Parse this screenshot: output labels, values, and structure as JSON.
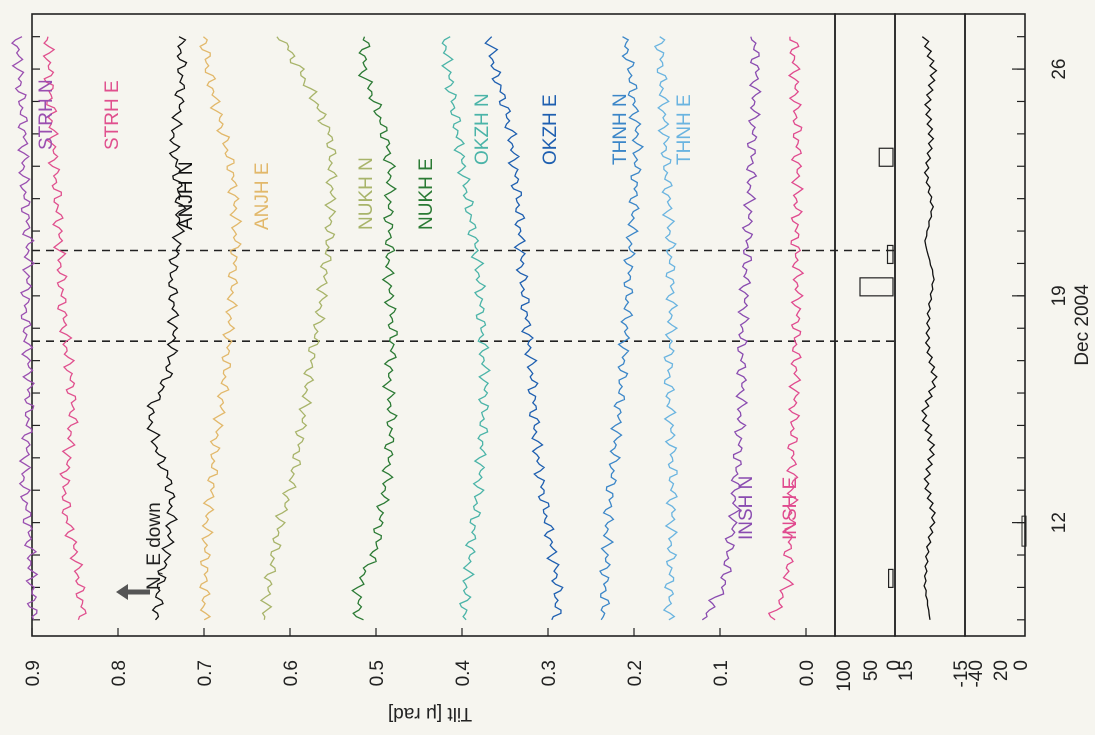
{
  "chart_data": {
    "type": "line",
    "orientation": "rotated-90-ccw",
    "xlabel": "Dec 2004",
    "x_ticks": [
      "12",
      "19",
      "26"
    ],
    "ylabel": "Tilt [μ rad]",
    "y_ticks": [
      "0.0",
      "0.1",
      "0.2",
      "0.3",
      "0.4",
      "0.5",
      "0.6",
      "0.7",
      "0.8",
      "0.9"
    ],
    "ylim": [
      0,
      1.0
    ],
    "annotation": "N, E down",
    "vertical_markers_x": [
      17.6,
      20.4
    ],
    "series": [
      {
        "name": "STRH N",
        "color": "#9a4fb0",
        "values": [
          0.898,
          0.9,
          0.902,
          0.905,
          0.91,
          0.906,
          0.904,
          0.903,
          0.906,
          0.908,
          0.905,
          0.904,
          0.907,
          0.91,
          0.909,
          0.912,
          0.915,
          0.918
        ]
      },
      {
        "name": "STRH E",
        "color": "#e0508e",
        "values": [
          0.84,
          0.845,
          0.85,
          0.86,
          0.862,
          0.857,
          0.852,
          0.855,
          0.86,
          0.864,
          0.866,
          0.868,
          0.87,
          0.873,
          0.876,
          0.878,
          0.88,
          0.882
        ]
      },
      {
        "name": "ANJH N",
        "color": "#111111",
        "values": [
          0.755,
          0.752,
          0.742,
          0.738,
          0.74,
          0.755,
          0.764,
          0.744,
          0.736,
          0.735,
          0.738,
          0.73,
          0.728,
          0.731,
          0.736,
          0.728,
          0.726,
          0.728
        ]
      },
      {
        "name": "ANJH E",
        "color": "#e2b86a",
        "values": [
          0.7,
          0.699,
          0.698,
          0.696,
          0.69,
          0.688,
          0.681,
          0.676,
          0.672,
          0.669,
          0.666,
          0.663,
          0.664,
          0.667,
          0.676,
          0.686,
          0.695,
          0.7
        ]
      },
      {
        "name": "NUKH N",
        "color": "#a8b46a",
        "values": [
          0.63,
          0.625,
          0.618,
          0.61,
          0.598,
          0.59,
          0.584,
          0.579,
          0.572,
          0.565,
          0.56,
          0.555,
          0.552,
          0.552,
          0.552,
          0.568,
          0.588,
          0.61
        ]
      },
      {
        "name": "NUKH E",
        "color": "#2b7a34",
        "values": [
          0.52,
          0.521,
          0.5,
          0.495,
          0.488,
          0.484,
          0.482,
          0.486,
          0.48,
          0.482,
          0.486,
          0.484,
          0.485,
          0.483,
          0.488,
          0.5,
          0.515,
          0.512
        ]
      },
      {
        "name": "OKZH N",
        "color": "#4bb4a8",
        "values": [
          0.398,
          0.395,
          0.39,
          0.385,
          0.38,
          0.377,
          0.375,
          0.373,
          0.376,
          0.378,
          0.38,
          0.385,
          0.392,
          0.398,
          0.404,
          0.41,
          0.416,
          0.42
        ]
      },
      {
        "name": "OKZH E",
        "color": "#1e5fb0",
        "values": [
          0.29,
          0.289,
          0.295,
          0.302,
          0.308,
          0.313,
          0.316,
          0.318,
          0.322,
          0.326,
          0.33,
          0.332,
          0.334,
          0.338,
          0.342,
          0.35,
          0.362,
          0.368
        ]
      },
      {
        "name": "THNH N",
        "color": "#3b86c8",
        "values": [
          0.235,
          0.234,
          0.232,
          0.23,
          0.226,
          0.222,
          0.218,
          0.214,
          0.211,
          0.208,
          0.206,
          0.204,
          0.2,
          0.198,
          0.196,
          0.2,
          0.204,
          0.212
        ]
      },
      {
        "name": "THNH E",
        "color": "#6ab4e0",
        "values": [
          0.16,
          0.158,
          0.157,
          0.156,
          0.155,
          0.156,
          0.158,
          0.16,
          0.158,
          0.156,
          0.157,
          0.158,
          0.16,
          0.162,
          0.164,
          0.166,
          0.168,
          0.17
        ]
      },
      {
        "name": "INSH N",
        "color": "#8a4cb0",
        "values": [
          0.12,
          0.095,
          0.09,
          0.083,
          0.082,
          0.078,
          0.076,
          0.074,
          0.075,
          0.072,
          0.07,
          0.068,
          0.066,
          0.064,
          0.062,
          0.06,
          0.058,
          0.06
        ]
      },
      {
        "name": "INSH E",
        "color": "#e04a8e",
        "values": [
          0.04,
          0.022,
          0.02,
          0.018,
          0.015,
          0.016,
          0.014,
          0.012,
          0.012,
          0.01,
          0.01,
          0.012,
          0.011,
          0.01,
          0.01,
          0.012,
          0.013,
          0.015
        ]
      }
    ],
    "sub_panels": [
      {
        "ticks": [
          "100",
          "50",
          "0"
        ],
        "bars": [
          0,
          8,
          0,
          0,
          0,
          0,
          0,
          0,
          0,
          0,
          60,
          10,
          0,
          0,
          25,
          0,
          0,
          0
        ]
      },
      {
        "ticks": [
          "15",
          "-15"
        ],
        "values": [
          0,
          4,
          2,
          -3,
          3,
          -2,
          5,
          -4,
          2,
          1,
          -3,
          4,
          -2,
          3,
          -1,
          2,
          -3,
          4
        ]
      },
      {
        "ticks": [
          "-40",
          "20",
          "0"
        ],
        "bars": [
          0,
          0,
          5,
          0,
          0,
          0,
          0,
          0,
          0,
          0,
          0,
          0,
          0,
          0,
          0,
          0,
          0,
          0
        ]
      }
    ]
  }
}
